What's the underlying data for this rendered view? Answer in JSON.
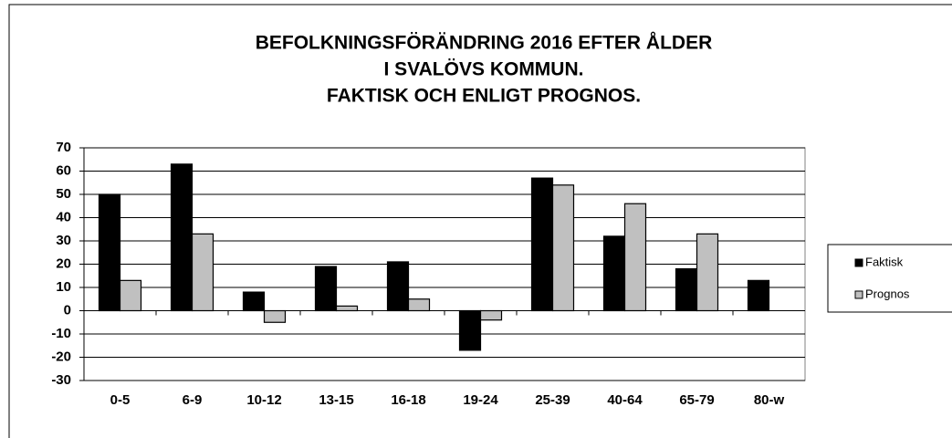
{
  "chart_data": {
    "type": "bar",
    "title": [
      "BEFOLKNINGSFÖRÄNDRING 2016 EFTER ÅLDER",
      "I SVALÖVS KOMMUN.",
      "FAKTISK OCH ENLIGT PROGNOS."
    ],
    "categories": [
      "0-5",
      "6-9",
      "10-12",
      "13-15",
      "16-18",
      "19-24",
      "25-39",
      "40-64",
      "65-79",
      "80-w"
    ],
    "series": [
      {
        "name": "Faktisk",
        "color": "#000000",
        "values": [
          50,
          63,
          8,
          19,
          21,
          -17,
          57,
          32,
          18,
          13
        ]
      },
      {
        "name": "Prognos",
        "color": "#c0c0c0",
        "values": [
          13,
          33,
          -5,
          2,
          5,
          -4,
          54,
          46,
          33,
          0
        ]
      }
    ],
    "ylim": [
      -30,
      70
    ],
    "yticks": [
      -30,
      -20,
      -10,
      0,
      10,
      20,
      30,
      40,
      50,
      60,
      70
    ],
    "grid": true,
    "legend": "right"
  }
}
